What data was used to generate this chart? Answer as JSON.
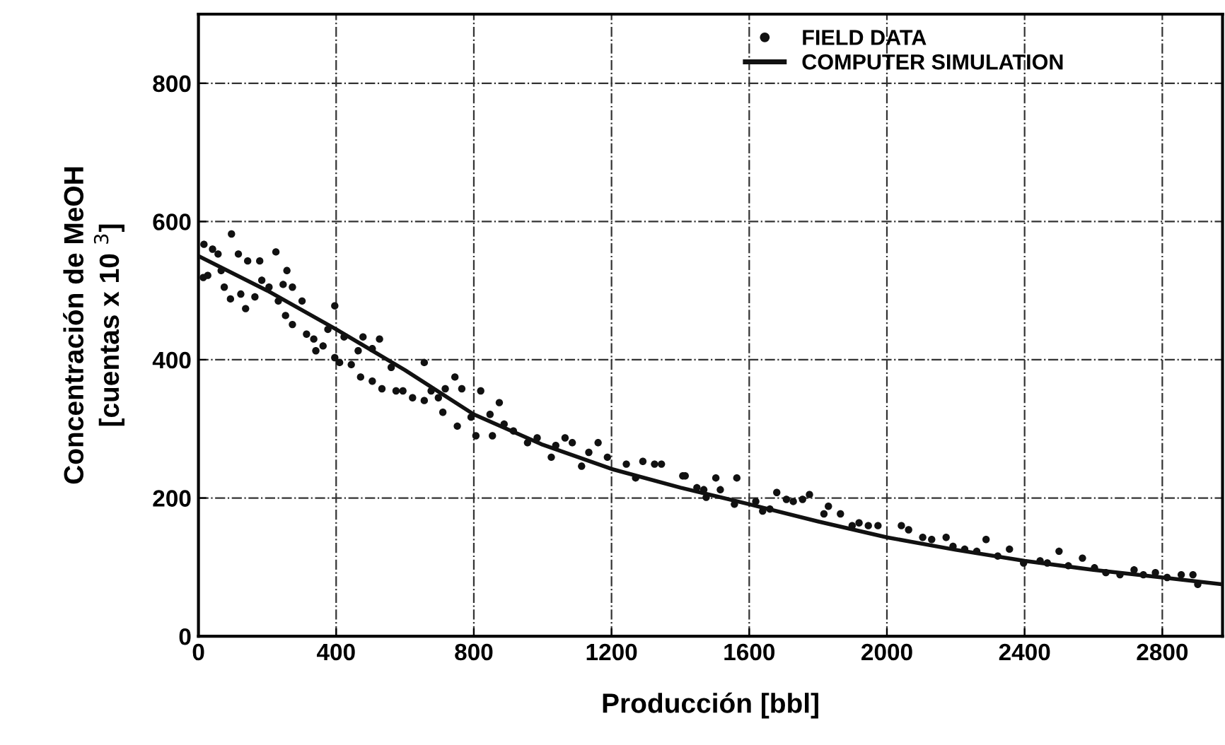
{
  "chart_data": {
    "type": "scatter",
    "xlabel": "Producción [bbl]",
    "ylabel": "Concentración de MeOH\n[cuentas x 10 $^{3}$]",
    "xlim": [
      0,
      2975
    ],
    "ylim": [
      0,
      900
    ],
    "xticks": [
      0,
      400,
      800,
      1200,
      1600,
      2000,
      2400,
      2800
    ],
    "yticks": [
      0,
      200,
      400,
      600,
      800
    ],
    "grid": true,
    "legend": "top right",
    "series": [
      {
        "name": "FIELD DATA",
        "marker": "circle",
        "color": "#111111",
        "x": [
          16,
          41,
          57,
          14,
          27,
          66,
          75,
          96,
          93,
          116,
          123,
          137,
          143,
          164,
          178,
          184,
          205,
          225,
          232,
          246,
          253,
          257,
          273,
          273,
          301,
          314,
          335,
          341,
          362,
          376,
          396,
          396,
          410,
          423,
          444,
          464,
          471,
          478,
          505,
          505,
          526,
          533,
          560,
          574,
          594,
          622,
          656,
          656,
          676,
          697,
          710,
          717,
          745,
          752,
          765,
          792,
          806,
          820,
          847,
          854,
          874,
          888,
          915,
          956,
          984,
          1025,
          1038,
          1065,
          1086,
          1113,
          1134,
          1161,
          1188,
          1243,
          1270,
          1291,
          1325,
          1345,
          1407,
          1448,
          1468,
          1414,
          1475,
          1503,
          1516,
          1564,
          1557,
          1619,
          1639,
          1660,
          1680,
          1708,
          1728,
          1755,
          1775,
          1817,
          1830,
          1865,
          1899,
          1919,
          1946,
          1974,
          2042,
          2063,
          2104,
          2130,
          2172,
          2192,
          2226,
          2261,
          2288,
          2322,
          2356,
          2397,
          2445,
          2466,
          2500,
          2527,
          2568,
          2603,
          2636,
          2677,
          2718,
          2745,
          2780,
          2814,
          2855,
          2889,
          2903
        ],
        "values": [
          567,
          560,
          553,
          519,
          522,
          529,
          505,
          582,
          488,
          553,
          495,
          474,
          543,
          491,
          543,
          515,
          505,
          556,
          485,
          509,
          464,
          529,
          505,
          451,
          485,
          437,
          430,
          413,
          420,
          444,
          478,
          403,
          396,
          433,
          393,
          413,
          375,
          433,
          416,
          369,
          430,
          358,
          389,
          355,
          355,
          345,
          341,
          396,
          355,
          345,
          324,
          358,
          375,
          304,
          358,
          317,
          290,
          355,
          321,
          290,
          338,
          307,
          297,
          280,
          287,
          259,
          276,
          287,
          280,
          246,
          266,
          280,
          259,
          249,
          229,
          253,
          249,
          249,
          232,
          215,
          212,
          232,
          201,
          229,
          212,
          229,
          191,
          195,
          181,
          184,
          208,
          198,
          195,
          198,
          205,
          177,
          188,
          177,
          160,
          164,
          160,
          160,
          160,
          154,
          143,
          140,
          143,
          130,
          126,
          123,
          140,
          116,
          126,
          106,
          109,
          106,
          123,
          102,
          113,
          99,
          92,
          89,
          96,
          89,
          92,
          85,
          89,
          89,
          75
        ]
      },
      {
        "name": "COMPUTER SIMULATION",
        "type": "line",
        "line_style": "solid",
        "color": "#111111",
        "x": [
          0,
          200,
          400,
          600,
          800,
          1000,
          1200,
          1400,
          1600,
          1800,
          2000,
          2200,
          2400,
          2600,
          2800,
          2975
        ],
        "values": [
          550,
          500,
          444,
          385,
          321,
          277,
          242,
          215,
          191,
          166,
          143,
          125,
          109,
          96,
          85,
          75
        ]
      }
    ]
  }
}
